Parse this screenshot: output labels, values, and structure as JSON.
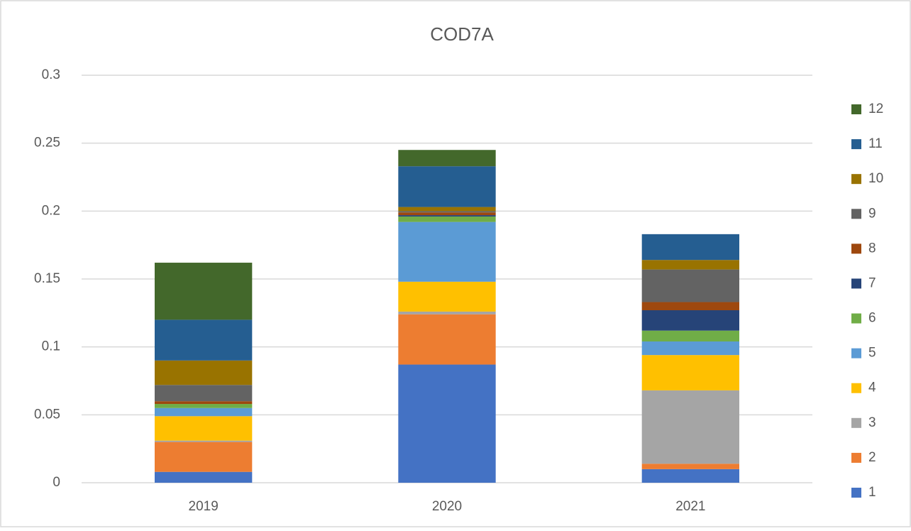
{
  "chart_data": {
    "type": "stacked_bar",
    "title": "COD7A",
    "categories": [
      "2019",
      "2020",
      "2021"
    ],
    "series": [
      {
        "name": "1",
        "color": "#4472c4",
        "values": [
          0.008,
          0.087,
          0.01
        ]
      },
      {
        "name": "2",
        "color": "#ed7d31",
        "values": [
          0.022,
          0.037,
          0.004
        ]
      },
      {
        "name": "3",
        "color": "#a5a5a5",
        "values": [
          0.001,
          0.002,
          0.054
        ]
      },
      {
        "name": "4",
        "color": "#ffc000",
        "values": [
          0.018,
          0.022,
          0.026
        ]
      },
      {
        "name": "5",
        "color": "#5b9bd5",
        "values": [
          0.006,
          0.044,
          0.01
        ]
      },
      {
        "name": "6",
        "color": "#70ad47",
        "values": [
          0.003,
          0.004,
          0.008
        ]
      },
      {
        "name": "7",
        "color": "#264478",
        "values": [
          0,
          0.001,
          0.015
        ]
      },
      {
        "name": "8",
        "color": "#9e480e",
        "values": [
          0.002,
          0.002,
          0.006
        ]
      },
      {
        "name": "9",
        "color": "#636363",
        "values": [
          0.012,
          0.001,
          0.024
        ]
      },
      {
        "name": "10",
        "color": "#997300",
        "values": [
          0.018,
          0.003,
          0.007
        ]
      },
      {
        "name": "11",
        "color": "#255e91",
        "values": [
          0.03,
          0.03,
          0.019
        ]
      },
      {
        "name": "12",
        "color": "#43682b",
        "values": [
          0.042,
          0.012,
          0
        ]
      }
    ],
    "ylim": [
      0,
      0.3
    ],
    "yticks": [
      0,
      0.05,
      0.1,
      0.15,
      0.2,
      0.25,
      0.3
    ],
    "grid": true,
    "legend": "right"
  }
}
